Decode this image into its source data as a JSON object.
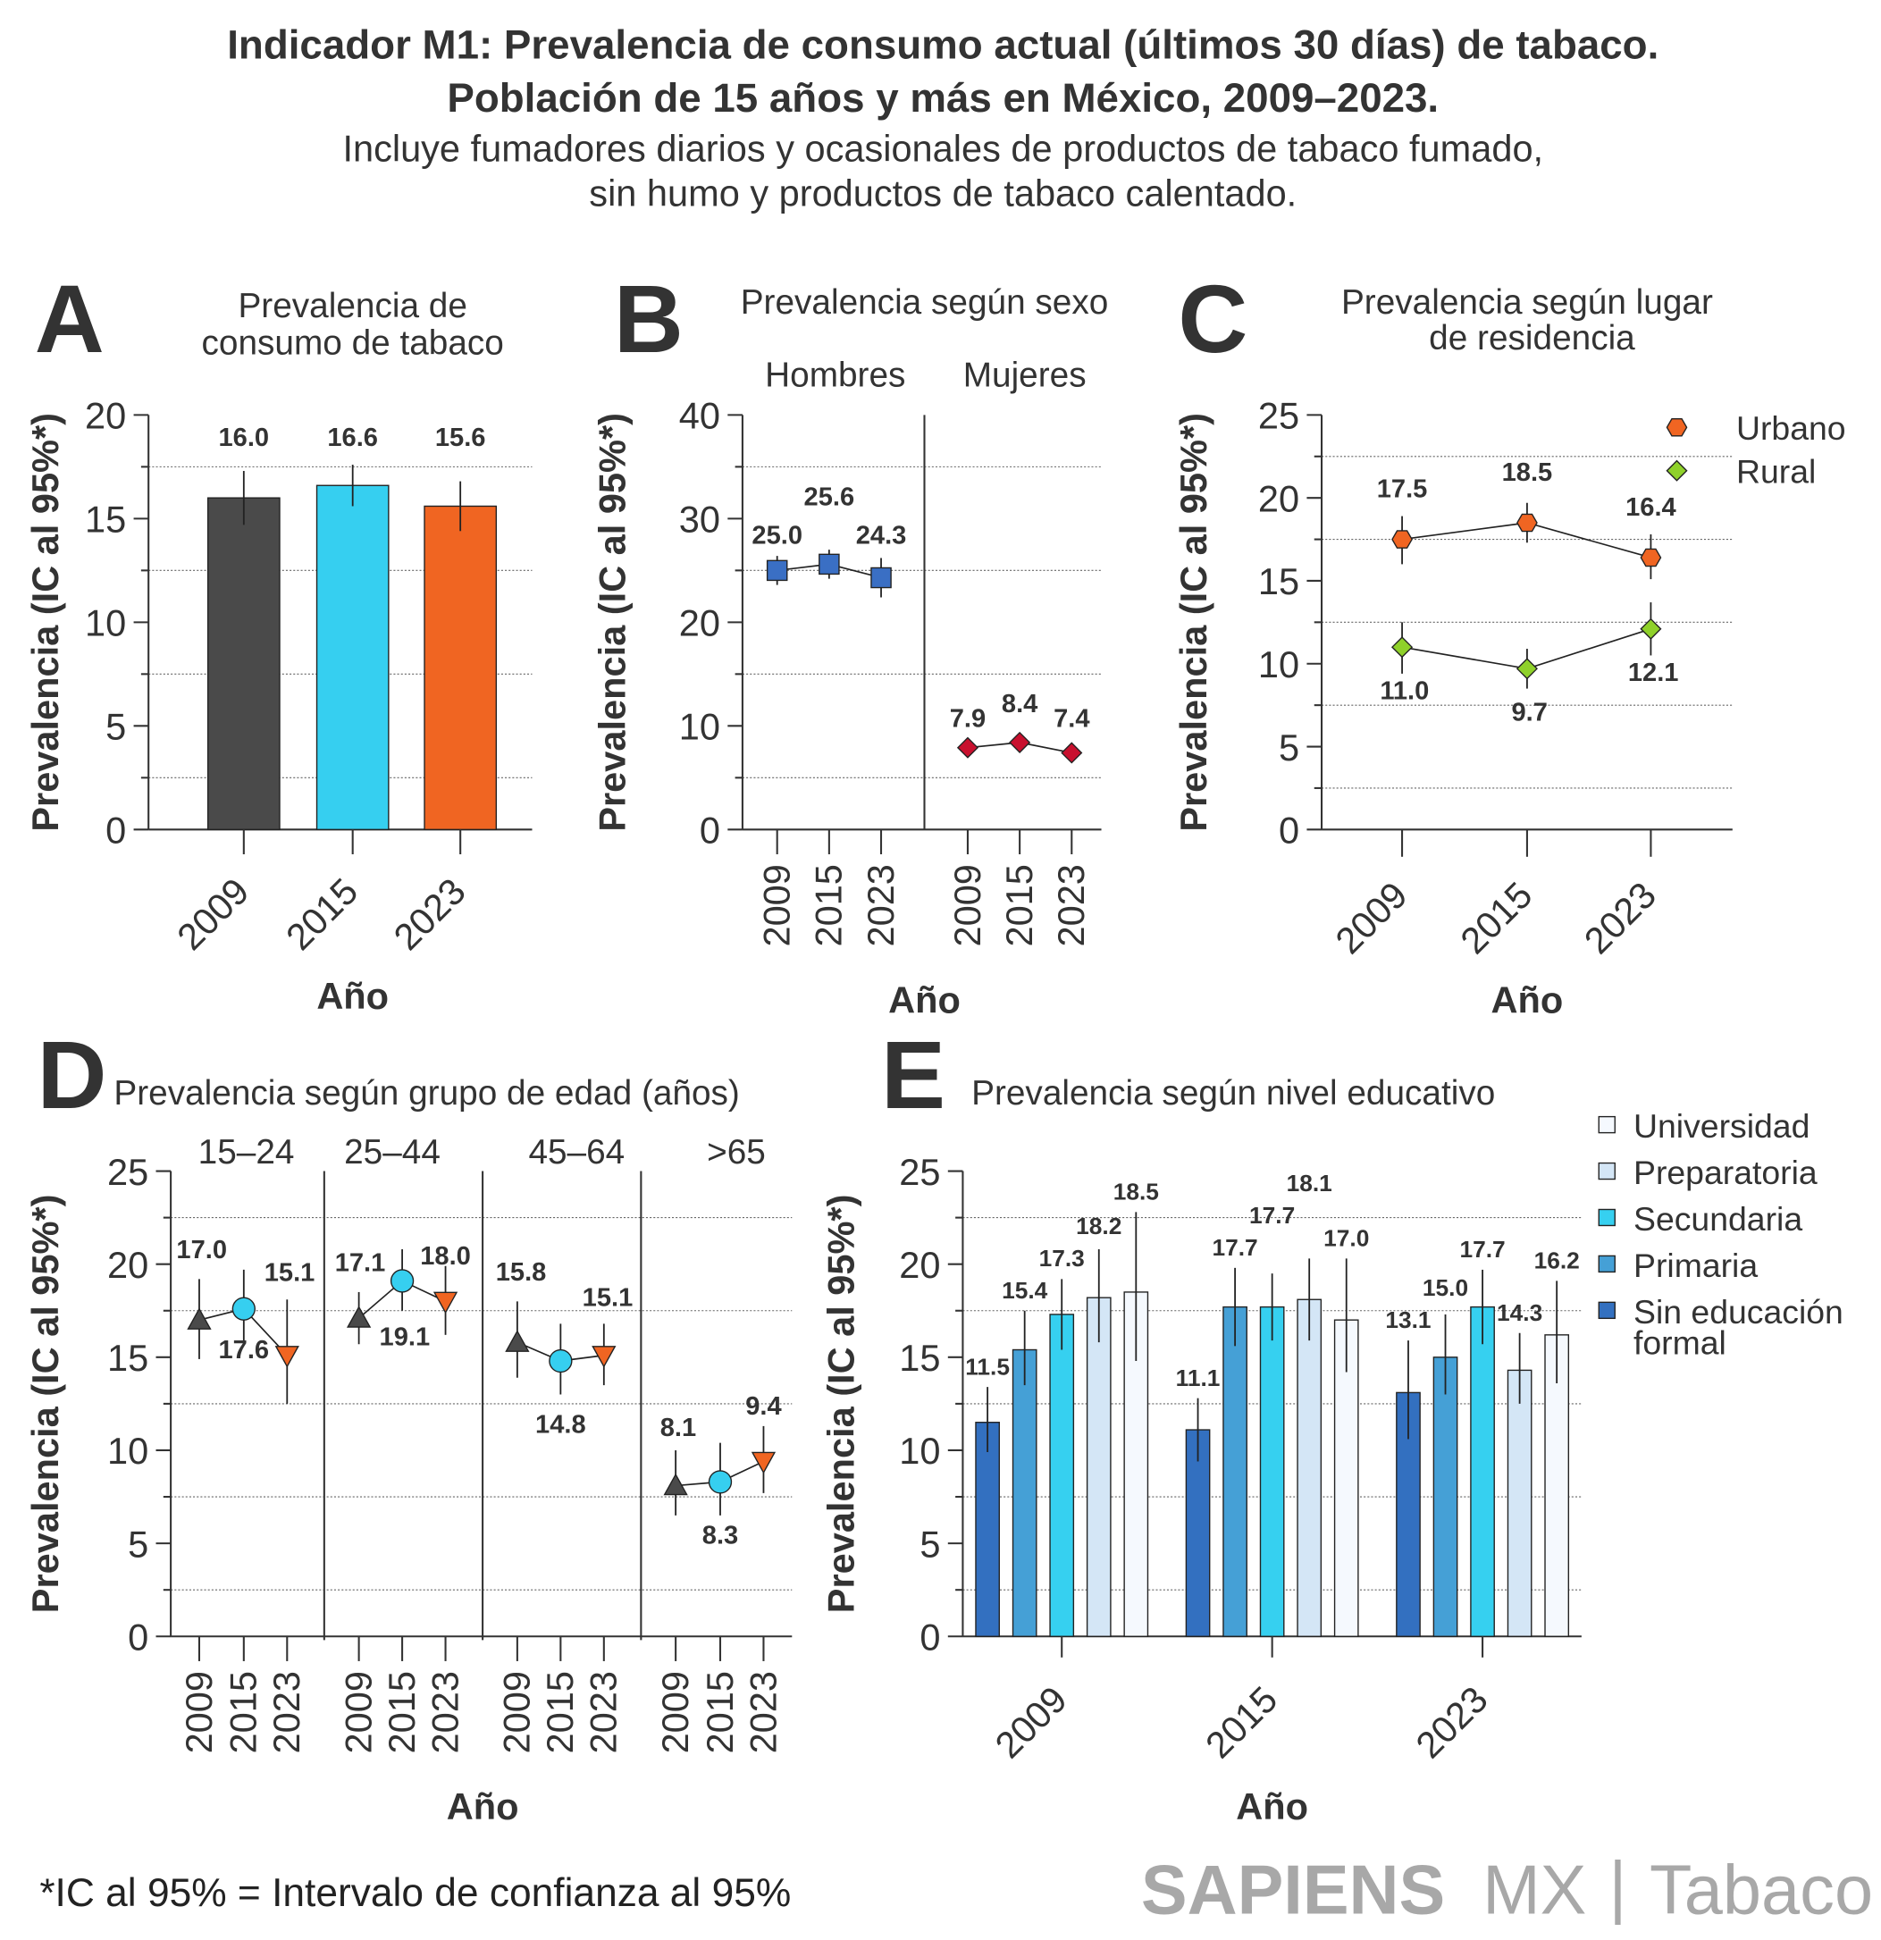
{
  "header": {
    "title_line1": "Indicador M1: Prevalencia de consumo actual (últimos 30 días) de tabaco.",
    "title_line2": "Población de 15 años y más en México, 2009–2023.",
    "subtitle_line1": "Incluye fumadores diarios y ocasionales de productos de tabaco fumado,",
    "subtitle_line2": "sin humo y productos de tabaco calentado."
  },
  "footer": {
    "note": "*IC al 95% = Intervalo de confianza al 95%",
    "logo_bold": "SAPIENS",
    "logo_light": "MX",
    "logo_sep": "|",
    "logo_topic": "Tabaco"
  },
  "chart_data": [
    {
      "panel": "A",
      "type": "bar",
      "title_line1": "Prevalencia de",
      "title_line2": "consumo de tabaco",
      "xlabel": "Año",
      "ylabel": "Prevalencia (IC al 95%*)",
      "ylim": [
        0,
        20
      ],
      "yticks": [
        "0",
        "5",
        "10",
        "15",
        "20"
      ],
      "grid": true,
      "categories": [
        "2009",
        "2015",
        "2023"
      ],
      "values": [
        16.0,
        16.6,
        15.6
      ],
      "labels": [
        "16.0",
        "16.6",
        "15.6"
      ],
      "ci_low": [
        14.7,
        15.6,
        14.4
      ],
      "ci_high": [
        17.3,
        17.6,
        16.8
      ],
      "colors": [
        "#4a4a4a",
        "#36cff0",
        "#f06522"
      ]
    },
    {
      "panel": "B",
      "type": "scatter",
      "title": "Prevalencia según sexo",
      "xlabel": "Año",
      "ylabel": "Prevalencia (IC al 95%*)",
      "ylim": [
        0,
        40
      ],
      "yticks": [
        "0",
        "10",
        "20",
        "30",
        "40"
      ],
      "grid": true,
      "groups": [
        {
          "name": "Hombres",
          "categories": [
            "2009",
            "2015",
            "2023"
          ],
          "values": [
            25.0,
            25.6,
            24.3
          ],
          "labels": [
            "25.0",
            "25.6",
            "24.3"
          ],
          "ci_low": [
            23.6,
            24.2,
            22.4
          ],
          "ci_high": [
            26.4,
            27.0,
            26.2
          ],
          "marker": "square",
          "color": "#3a6fc4"
        },
        {
          "name": "Mujeres",
          "categories": [
            "2009",
            "2015",
            "2023"
          ],
          "values": [
            7.9,
            8.4,
            7.4
          ],
          "labels": [
            "7.9",
            "8.4",
            "7.4"
          ],
          "ci_low": [
            7.2,
            7.7,
            6.7
          ],
          "ci_high": [
            8.6,
            9.1,
            8.1
          ],
          "marker": "diamond",
          "color": "#c8102e"
        }
      ]
    },
    {
      "panel": "C",
      "type": "line",
      "title_line1": "Prevalencia según lugar",
      "title_line2": "de residencia",
      "xlabel": "Año",
      "ylabel": "Prevalencia (IC al 95%*)",
      "ylim": [
        0,
        25
      ],
      "yticks": [
        "0",
        "5",
        "10",
        "15",
        "20",
        "25"
      ],
      "grid": true,
      "legend": "top-right",
      "categories": [
        "2009",
        "2015",
        "2023"
      ],
      "series": [
        {
          "name": "Urbano",
          "values": [
            17.5,
            18.5,
            16.4
          ],
          "labels": [
            "17.5",
            "18.5",
            "16.4"
          ],
          "ci_low": [
            16.0,
            17.3,
            15.1
          ],
          "ci_high": [
            18.9,
            19.7,
            17.8
          ],
          "marker": "hexagon",
          "color": "#f06522"
        },
        {
          "name": "Rural",
          "values": [
            11.0,
            9.7,
            12.1
          ],
          "labels": [
            "11.0",
            "9.7",
            "12.1"
          ],
          "ci_low": [
            9.4,
            8.5,
            10.5
          ],
          "ci_high": [
            12.5,
            10.9,
            13.7
          ],
          "marker": "diamond",
          "color": "#8fd12a"
        }
      ]
    },
    {
      "panel": "D",
      "type": "line",
      "title": "Prevalencia según grupo de edad (años)",
      "xlabel": "Año",
      "ylabel": "Prevalencia (IC al 95%*)",
      "ylim": [
        0,
        25
      ],
      "yticks": [
        "0",
        "5",
        "10",
        "15",
        "20",
        "25"
      ],
      "grid": true,
      "years": [
        "2009",
        "2015",
        "2023"
      ],
      "year_markers": [
        "triangle-up",
        "circle",
        "triangle-down"
      ],
      "year_colors": [
        "#4a4a4a",
        "#36cff0",
        "#f06522"
      ],
      "groups": [
        {
          "name": "15–24",
          "values": [
            17.0,
            17.6,
            15.1
          ],
          "labels": [
            "17.0",
            "17.6",
            "15.1"
          ],
          "ci_low": [
            14.9,
            15.7,
            12.5
          ],
          "ci_high": [
            19.2,
            19.7,
            18.1
          ]
        },
        {
          "name": "25–44",
          "values": [
            17.1,
            19.1,
            18.0
          ],
          "labels": [
            "17.1",
            "19.1",
            "18.0"
          ],
          "ci_low": [
            15.7,
            17.5,
            16.2
          ],
          "ci_high": [
            18.5,
            20.8,
            19.9
          ]
        },
        {
          "name": "45–64",
          "values": [
            15.8,
            14.8,
            15.1
          ],
          "labels": [
            "15.8",
            "14.8",
            "15.1"
          ],
          "ci_low": [
            13.9,
            13.0,
            13.5
          ],
          "ci_high": [
            18.0,
            16.8,
            16.8
          ]
        },
        {
          "name": ">65",
          "values": [
            8.1,
            8.3,
            9.4
          ],
          "labels": [
            "8.1",
            "8.3",
            "9.4"
          ],
          "ci_low": [
            6.5,
            6.5,
            7.7
          ],
          "ci_high": [
            10.0,
            10.4,
            11.3
          ]
        }
      ]
    },
    {
      "panel": "E",
      "type": "bar",
      "title": "Prevalencia según nivel educativo",
      "xlabel": "Año",
      "ylabel": "Prevalencia (IC al 95%*)",
      "ylim": [
        0,
        25
      ],
      "yticks": [
        "0",
        "5",
        "10",
        "15",
        "20",
        "25"
      ],
      "grid": true,
      "legend": "right",
      "categories": [
        "2009",
        "2015",
        "2023"
      ],
      "series": [
        {
          "name": "Sin educación formal",
          "values": [
            11.5,
            11.1,
            13.1
          ],
          "labels": [
            "11.5",
            "11.1",
            "13.1"
          ],
          "ci_low": [
            9.9,
            9.4,
            10.6
          ],
          "ci_high": [
            13.4,
            12.8,
            15.9
          ],
          "color": "#3370c0"
        },
        {
          "name": "Primaria",
          "values": [
            15.4,
            17.7,
            15.0
          ],
          "labels": [
            "15.4",
            "17.7",
            "15.0"
          ],
          "ci_low": [
            13.5,
            15.6,
            13.0
          ],
          "ci_high": [
            17.5,
            19.8,
            17.3
          ],
          "color": "#45a0d6"
        },
        {
          "name": "Secundaria",
          "values": [
            17.3,
            17.7,
            17.7
          ],
          "labels": [
            "17.3",
            "17.7",
            "17.7"
          ],
          "ci_low": [
            15.4,
            15.9,
            15.7
          ],
          "ci_high": [
            19.2,
            19.5,
            19.7
          ],
          "color": "#36d0f0"
        },
        {
          "name": "Preparatoria",
          "values": [
            18.2,
            18.1,
            14.3
          ],
          "labels": [
            "18.2",
            "18.1",
            "14.3"
          ],
          "ci_low": [
            15.8,
            15.9,
            12.5
          ],
          "ci_high": [
            20.8,
            20.3,
            16.3
          ],
          "color": "#d4e6f6"
        },
        {
          "name": "Universidad",
          "values": [
            18.5,
            17.0,
            16.2
          ],
          "labels": [
            "18.5",
            "17.0",
            "16.2"
          ],
          "ci_low": [
            14.8,
            14.2,
            13.6
          ],
          "ci_high": [
            22.8,
            20.3,
            19.1
          ],
          "color": "#f5f9fe"
        }
      ]
    }
  ]
}
